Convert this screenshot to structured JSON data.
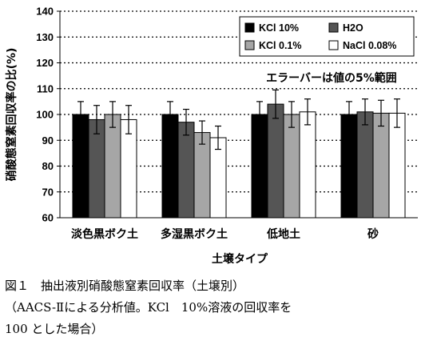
{
  "chart_data": {
    "type": "bar",
    "ylabel": "硝酸態窒素回収率の比(%)",
    "xlabel": "土壌タイプ",
    "ylim": [
      60,
      140
    ],
    "yticks": [
      60,
      70,
      80,
      90,
      100,
      110,
      120,
      130,
      140
    ],
    "grid": "horizontal dotted",
    "categories": [
      "淡色黒ボク土",
      "多湿黒ボク土",
      "低地土",
      "砂"
    ],
    "series": [
      {
        "name": "KCl 10%",
        "color": "#000000",
        "values": [
          100,
          100,
          100,
          100
        ],
        "errors": [
          5,
          5,
          5,
          5
        ]
      },
      {
        "name": "H2O",
        "color": "#555555",
        "values": [
          98,
          97,
          104,
          101
        ],
        "errors": [
          5.5,
          5,
          5.5,
          5
        ]
      },
      {
        "name": "KCl 0.1%",
        "color": "#a6a6a6",
        "values": [
          100,
          93,
          100,
          100.5
        ],
        "errors": [
          5,
          4.5,
          5,
          5
        ]
      },
      {
        "name": "NaCl 0.08%",
        "color": "#ffffff",
        "values": [
          98,
          91,
          101,
          100.5
        ],
        "errors": [
          5.5,
          4.5,
          5,
          5.5
        ]
      }
    ],
    "legend_position": "top-right",
    "annotation": "エラーバーは値の5%範囲"
  },
  "caption": {
    "line1": "図１　抽出液別硝酸態窒素回収率（土壌別）",
    "line2": "（AACS-Ⅱによる分析値。KCl　10%溶液の回収率を",
    "line3": "100 とした場合）"
  }
}
